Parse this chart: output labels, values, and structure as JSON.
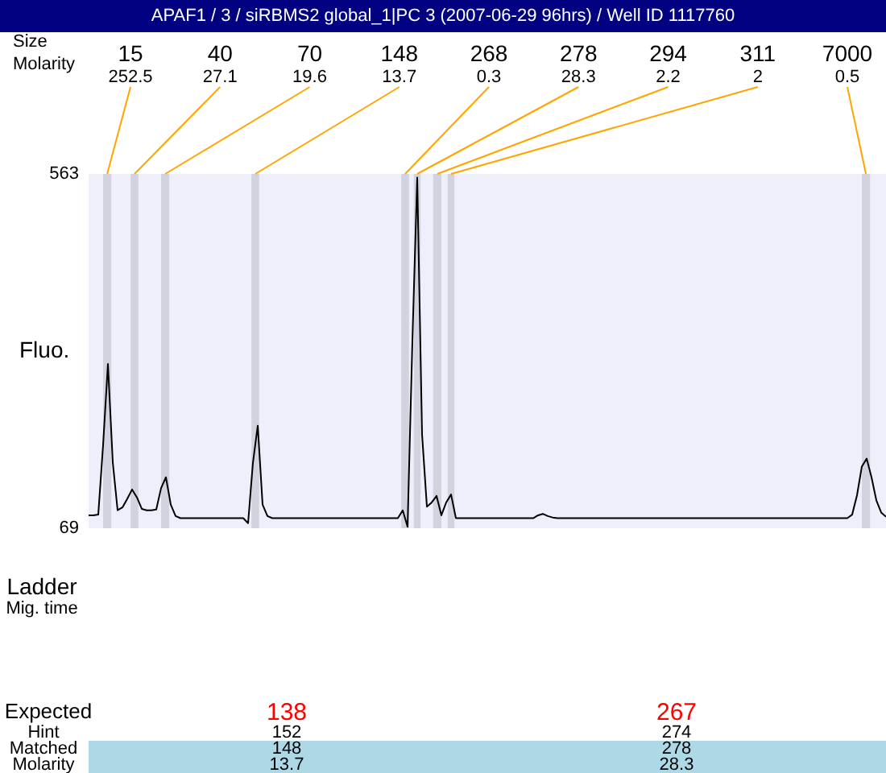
{
  "chart_data": {
    "type": "line",
    "title": "APAF1  / 3 / siRBMS2 global_1|PC 3 (2007-06-29 96hrs) / Well ID 1117760",
    "ylabel": "Fluo.",
    "categories": [
      null,
      null,
      null,
      null,
      null,
      null,
      null,
      null,
      null,
      null,
      null,
      null,
      null,
      null,
      null,
      null,
      null,
      null,
      null,
      null,
      null,
      null,
      null,
      null,
      null,
      null,
      null,
      null,
      null,
      null,
      null,
      null,
      null,
      null,
      null,
      null,
      null,
      null,
      null,
      null,
      null,
      null,
      null,
      null,
      null,
      null,
      null,
      null,
      null,
      null,
      null,
      null,
      null,
      null,
      null,
      null,
      null,
      null,
      null,
      null,
      null,
      null,
      null,
      null,
      null,
      null,
      null,
      null,
      null,
      null,
      null,
      null,
      null,
      null,
      null,
      null,
      null,
      null,
      null,
      null,
      null,
      null,
      null,
      null,
      null,
      null,
      null,
      null,
      null,
      null,
      null,
      null,
      null,
      null,
      null,
      null,
      null,
      null,
      null,
      null,
      null,
      null,
      null,
      null,
      null,
      null,
      null,
      null,
      null,
      null,
      null,
      null,
      null,
      null,
      null,
      null,
      null,
      null,
      null,
      null,
      null,
      null,
      null,
      null,
      null,
      null,
      null,
      null,
      null,
      null,
      null,
      null,
      null,
      null,
      null,
      null,
      null,
      null,
      null,
      null,
      null,
      null,
      null,
      null,
      null,
      null,
      null,
      null,
      null,
      null,
      null,
      null,
      null,
      null,
      null,
      null,
      null,
      null,
      null,
      null,
      null,
      null,
      null,
      null,
      null,
      null
    ],
    "series": [
      {
        "color": "#000000",
        "values": [
          87,
          87,
          88,
          185,
          298,
          161,
          94,
          98,
          110,
          123,
          112,
          96,
          94,
          94,
          95,
          125,
          140,
          102,
          86,
          83,
          83,
          83,
          83,
          83,
          83,
          83,
          83,
          83,
          83,
          83,
          83,
          83,
          83,
          76,
          160,
          212,
          102,
          86,
          83,
          83,
          83,
          83,
          83,
          83,
          83,
          83,
          83,
          83,
          83,
          83,
          83,
          83,
          83,
          83,
          83,
          83,
          83,
          83,
          83,
          83,
          83,
          83,
          83,
          83,
          83,
          94,
          71,
          330,
          558,
          200,
          99,
          105,
          114,
          87,
          105,
          116,
          83,
          83,
          83,
          83,
          83,
          83,
          83,
          83,
          83,
          83,
          83,
          83,
          83,
          83,
          83,
          83,
          83,
          87,
          89,
          86,
          84,
          83,
          83,
          83,
          83,
          83,
          83,
          83,
          83,
          83,
          83,
          83,
          83,
          83,
          83,
          83,
          83,
          83,
          83,
          83,
          83,
          83,
          83,
          83,
          83,
          83,
          83,
          83,
          83,
          83,
          83,
          83,
          83,
          83,
          83,
          83,
          83,
          83,
          83,
          83,
          83,
          83,
          83,
          83,
          83,
          83,
          83,
          83,
          83,
          83,
          83,
          83,
          83,
          83,
          83,
          83,
          83,
          83,
          83,
          83,
          83,
          83,
          88,
          115,
          155,
          166,
          140,
          108,
          91,
          85
        ]
      }
    ],
    "ylim": [
      69,
      563
    ],
    "yticks": [
      69,
      563
    ],
    "tick_labels": "y",
    "grid": false,
    "legend": false,
    "marker": "none",
    "line_style": "solid",
    "annotations": [
      "Size",
      "Molarity",
      "Ladder",
      "Mig. time",
      "Expected",
      "138",
      "267",
      "Hint",
      "152",
      "274",
      "Matched",
      "148",
      "278",
      "Molarity",
      "13.7",
      "28.3",
      "15",
      "252.5",
      "40",
      "27.1",
      "70",
      "19.6",
      "148",
      "13.7",
      "268",
      "0.3",
      "278",
      "28.3",
      "294",
      "2.2",
      "311",
      "2",
      "7000",
      "0.5"
    ]
  }
}
